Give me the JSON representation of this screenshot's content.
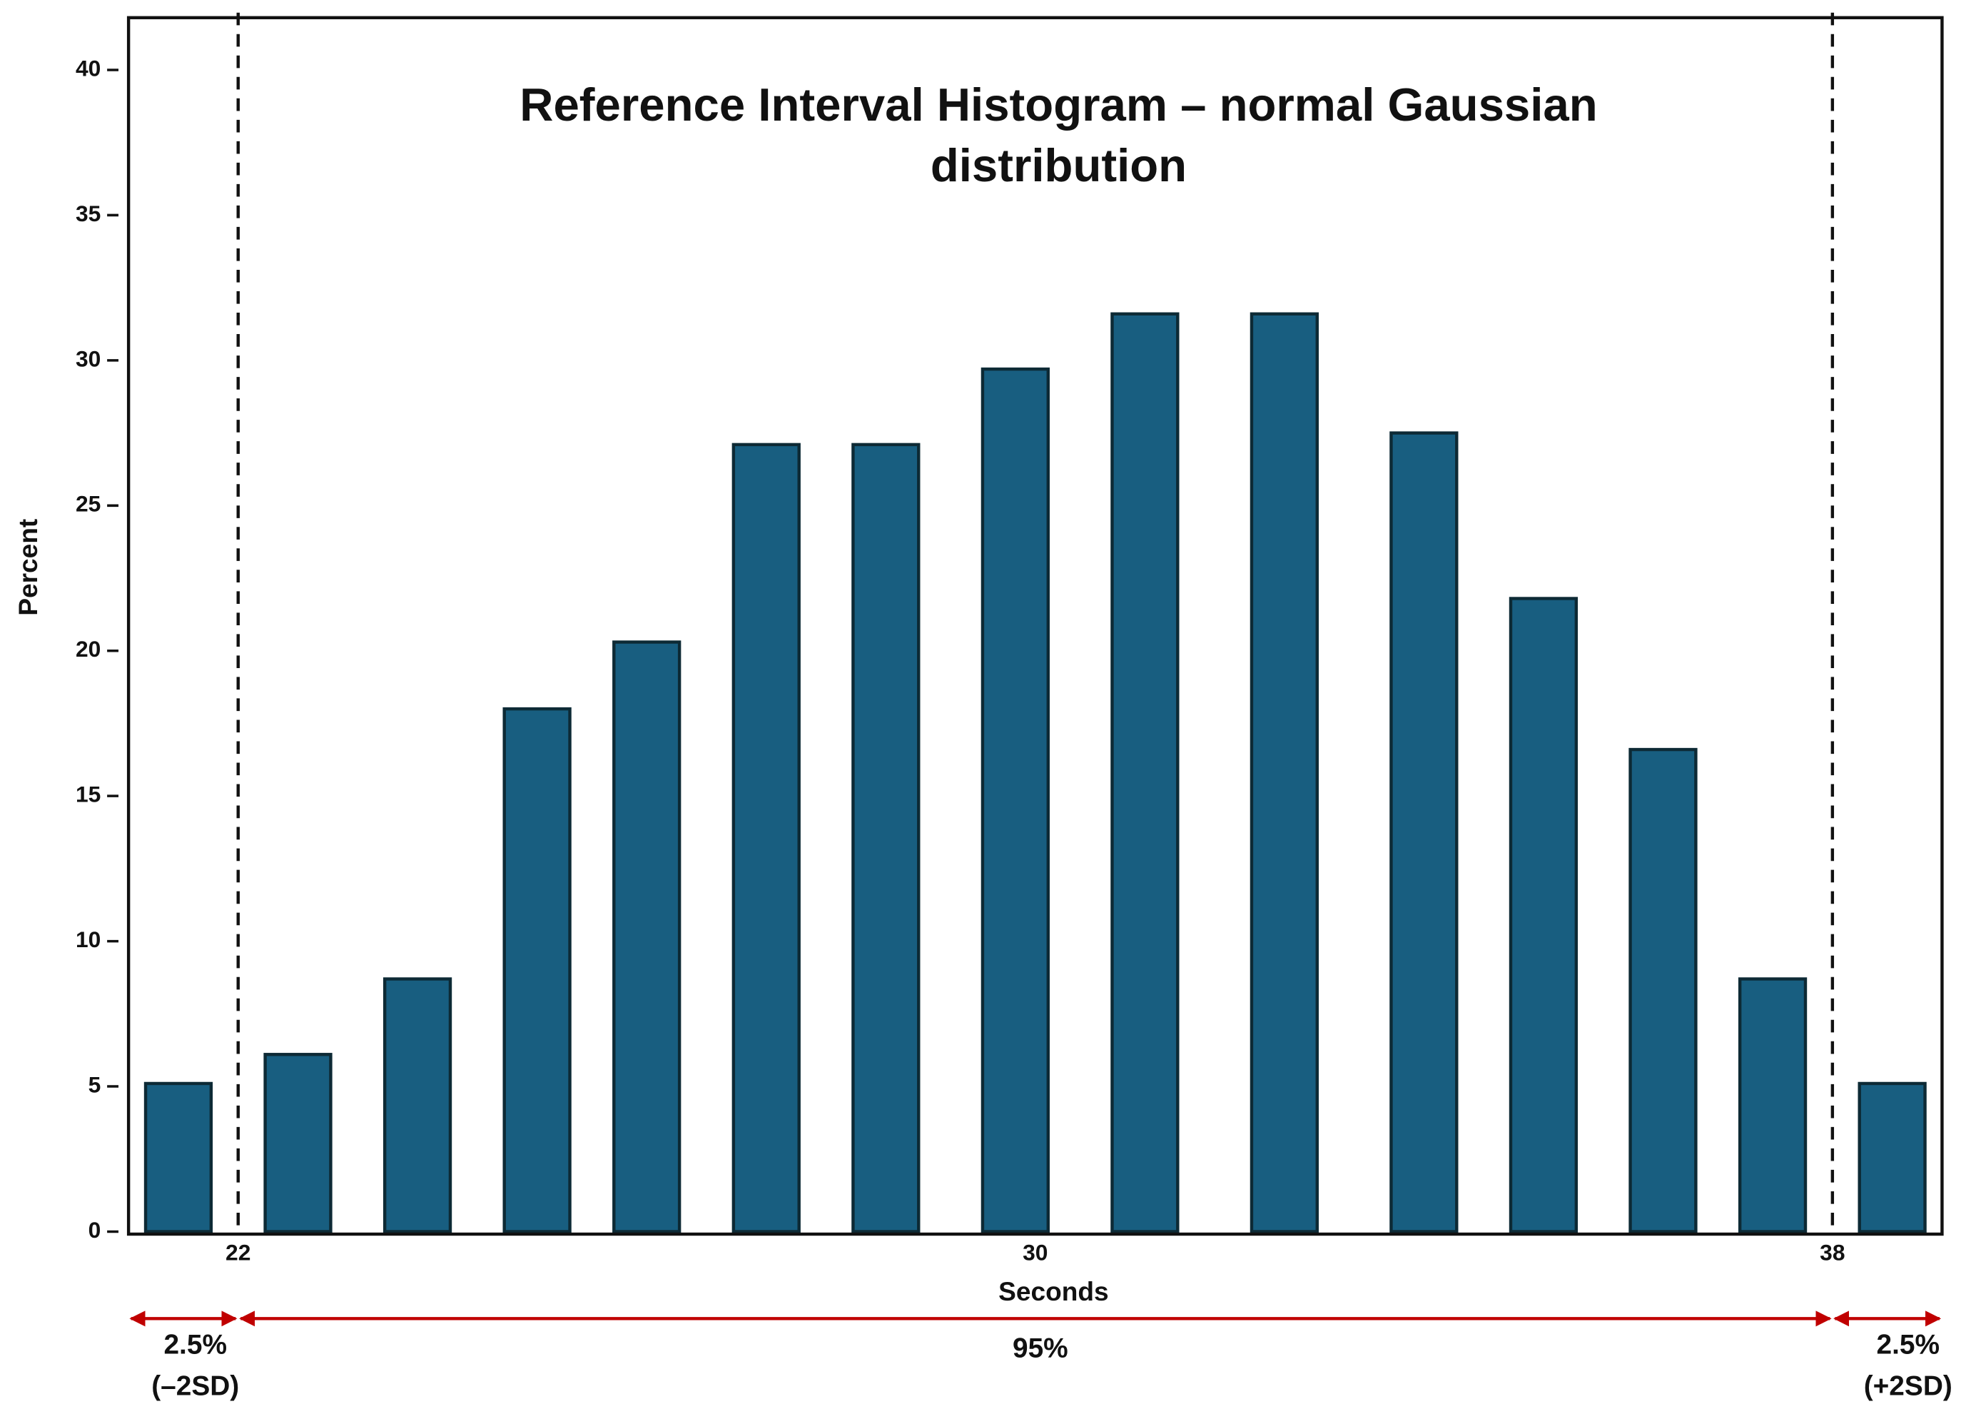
{
  "chart_data": {
    "type": "bar",
    "title": [
      "Reference Interval Histogram – normal Gaussian",
      "distribution"
    ],
    "xlabel": "Seconds",
    "ylabel": "Percent",
    "x": [
      21.4,
      22.6,
      23.8,
      25.0,
      26.1,
      27.3,
      28.5,
      29.8,
      31.1,
      32.5,
      33.9,
      35.1,
      36.3,
      37.4,
      38.6
    ],
    "values": [
      5.1,
      6.1,
      8.7,
      18.0,
      20.3,
      27.1,
      27.1,
      29.7,
      31.6,
      31.6,
      27.5,
      21.8,
      16.6,
      8.7,
      5.1
    ],
    "color": "#185e80",
    "edge_color": "#0d2a35",
    "xlim": [
      20.9,
      39.1
    ],
    "ylim": [
      0,
      41.8
    ],
    "xticks": [
      22,
      30,
      38
    ],
    "yticks": [
      0,
      5,
      10,
      15,
      20,
      25,
      30,
      35,
      40
    ],
    "vlines": [
      22,
      38
    ],
    "spans": [
      {
        "label": [
          "2.5%",
          "(–2SD)"
        ]
      },
      {
        "label": [
          "95%"
        ]
      },
      {
        "label": [
          "2.5%",
          "(+2SD)"
        ]
      }
    ],
    "span_color": "#c00000"
  }
}
